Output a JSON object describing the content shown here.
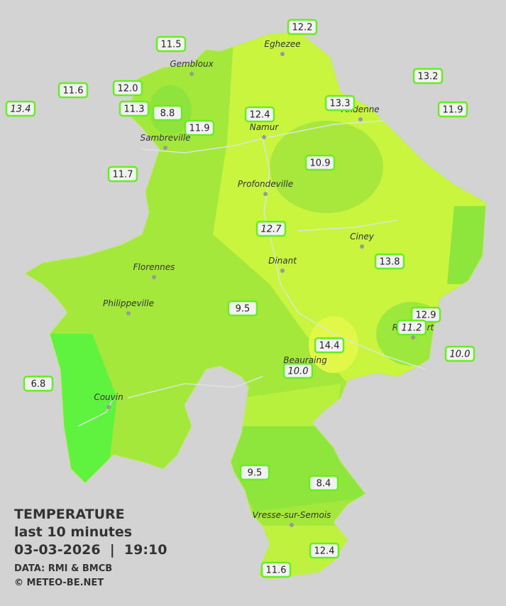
{
  "map": {
    "info": {
      "title": "TEMPERATURE",
      "subtitle": "last 10 minutes",
      "datetime": "03-03-2026  |  19:10",
      "source": "DATA: RMI & BMCB",
      "credit": "© METEO-BE.NET"
    },
    "cities": [
      "Eghezee",
      "Gembloux",
      "Andenne",
      "Namur",
      "Sambreville",
      "Profondeville",
      "Ciney",
      "Dinant",
      "Florennes",
      "Philippeville",
      "Beauraing",
      "Rochefort",
      "Couvin",
      "Vresse-sur-Semois"
    ],
    "stations": [
      "12.2",
      "11.5",
      "13.2",
      "11.6",
      "12.0",
      "13.4",
      "11.3",
      "8.8",
      "12.4",
      "13.3",
      "11.9",
      "11.9",
      "10.9",
      "11.7",
      "12.7",
      "13.8",
      "9.5",
      "12.9",
      "11.2",
      "14.4",
      "10.0",
      "10.0",
      "6.8",
      "9.5",
      "8.4",
      "12.4",
      "11.6"
    ]
  }
}
